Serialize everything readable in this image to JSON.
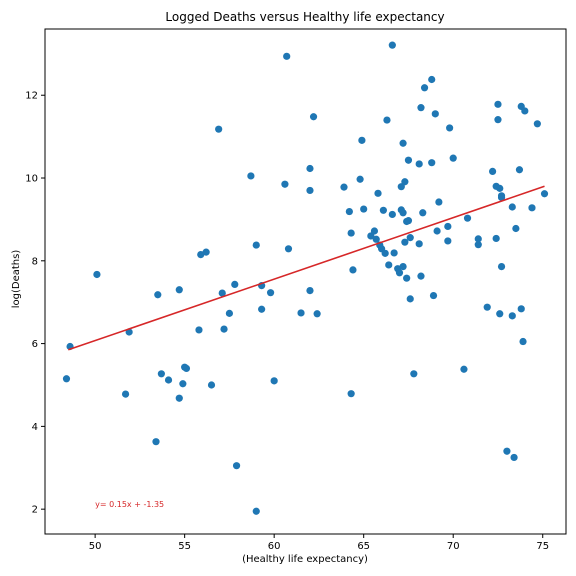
{
  "chart_data": {
    "type": "scatter",
    "title": "Logged Deaths versus Healthy life expectancy",
    "xlabel": "(Healthy life expectancy)",
    "ylabel": "log(Deaths)",
    "xlim": [
      47.2,
      76.3
    ],
    "ylim": [
      1.4,
      13.6
    ],
    "xticks": [
      50,
      55,
      60,
      65,
      70,
      75
    ],
    "yticks": [
      2,
      4,
      6,
      8,
      10,
      12
    ],
    "grid": false,
    "point_color": "#1f77b4",
    "fit_line": {
      "slope": 0.15,
      "intercept": -1.35,
      "x_range": [
        48.5,
        75.1
      ],
      "y_range": [
        5.85,
        9.8
      ],
      "color": "#d62728"
    },
    "annotation": {
      "text": "y= 0.15x + -1.35",
      "x": 50,
      "y": 2.05,
      "color": "#d62728"
    },
    "points": [
      [
        48.4,
        5.15
      ],
      [
        48.6,
        5.93
      ],
      [
        50.1,
        7.67
      ],
      [
        51.7,
        4.78
      ],
      [
        51.9,
        6.28
      ],
      [
        53.4,
        3.63
      ],
      [
        53.5,
        7.18
      ],
      [
        53.7,
        5.27
      ],
      [
        54.1,
        5.12
      ],
      [
        54.7,
        7.3
      ],
      [
        54.7,
        4.68
      ],
      [
        54.9,
        5.03
      ],
      [
        55.0,
        5.43
      ],
      [
        55.1,
        5.4
      ],
      [
        55.8,
        6.33
      ],
      [
        55.9,
        8.15
      ],
      [
        56.2,
        8.21
      ],
      [
        56.5,
        5.0
      ],
      [
        56.9,
        11.18
      ],
      [
        57.1,
        7.22
      ],
      [
        57.2,
        6.35
      ],
      [
        57.5,
        6.73
      ],
      [
        57.8,
        7.43
      ],
      [
        57.9,
        3.05
      ],
      [
        58.7,
        10.05
      ],
      [
        59.0,
        8.38
      ],
      [
        59.0,
        1.95
      ],
      [
        59.3,
        6.83
      ],
      [
        59.3,
        7.4
      ],
      [
        59.8,
        7.23
      ],
      [
        60.0,
        5.1
      ],
      [
        60.6,
        9.85
      ],
      [
        60.7,
        12.94
      ],
      [
        60.8,
        8.29
      ],
      [
        61.5,
        6.74
      ],
      [
        62.0,
        10.23
      ],
      [
        62.0,
        9.7
      ],
      [
        62.0,
        7.28
      ],
      [
        62.2,
        11.48
      ],
      [
        62.4,
        6.72
      ],
      [
        63.9,
        9.78
      ],
      [
        64.2,
        9.19
      ],
      [
        64.3,
        4.79
      ],
      [
        64.3,
        8.67
      ],
      [
        64.4,
        7.78
      ],
      [
        64.8,
        9.97
      ],
      [
        64.9,
        10.91
      ],
      [
        65.0,
        9.25
      ],
      [
        65.4,
        8.6
      ],
      [
        65.6,
        8.72
      ],
      [
        65.7,
        8.52
      ],
      [
        65.8,
        9.63
      ],
      [
        65.9,
        8.38
      ],
      [
        66.0,
        8.29
      ],
      [
        66.1,
        9.22
      ],
      [
        66.2,
        8.18
      ],
      [
        66.3,
        11.4
      ],
      [
        66.4,
        7.9
      ],
      [
        66.6,
        13.21
      ],
      [
        66.6,
        9.12
      ],
      [
        66.7,
        8.19
      ],
      [
        66.9,
        7.81
      ],
      [
        67.0,
        7.71
      ],
      [
        67.1,
        9.23
      ],
      [
        67.1,
        9.79
      ],
      [
        67.2,
        9.16
      ],
      [
        67.2,
        10.84
      ],
      [
        67.2,
        7.86
      ],
      [
        67.3,
        9.91
      ],
      [
        67.3,
        8.45
      ],
      [
        67.4,
        8.95
      ],
      [
        67.4,
        7.58
      ],
      [
        67.5,
        10.43
      ],
      [
        67.5,
        8.97
      ],
      [
        67.6,
        8.56
      ],
      [
        67.6,
        7.08
      ],
      [
        67.8,
        5.27
      ],
      [
        68.1,
        8.41
      ],
      [
        68.1,
        10.34
      ],
      [
        68.2,
        7.63
      ],
      [
        68.2,
        11.7
      ],
      [
        68.3,
        9.16
      ],
      [
        68.4,
        12.18
      ],
      [
        68.8,
        12.38
      ],
      [
        68.8,
        10.37
      ],
      [
        68.9,
        7.16
      ],
      [
        69.0,
        11.55
      ],
      [
        69.1,
        8.72
      ],
      [
        69.2,
        9.42
      ],
      [
        69.7,
        8.48
      ],
      [
        69.7,
        8.83
      ],
      [
        69.8,
        11.21
      ],
      [
        70.0,
        10.48
      ],
      [
        70.6,
        5.38
      ],
      [
        70.8,
        9.03
      ],
      [
        71.4,
        8.53
      ],
      [
        71.4,
        8.39
      ],
      [
        71.9,
        6.88
      ],
      [
        72.2,
        10.16
      ],
      [
        72.4,
        9.8
      ],
      [
        72.4,
        8.54
      ],
      [
        72.5,
        11.78
      ],
      [
        72.5,
        11.41
      ],
      [
        72.6,
        9.75
      ],
      [
        72.6,
        6.72
      ],
      [
        72.7,
        9.53
      ],
      [
        72.7,
        9.57
      ],
      [
        72.7,
        7.86
      ],
      [
        73.0,
        3.4
      ],
      [
        73.3,
        6.67
      ],
      [
        73.3,
        9.3
      ],
      [
        73.4,
        3.25
      ],
      [
        73.5,
        8.78
      ],
      [
        73.7,
        10.2
      ],
      [
        73.8,
        11.73
      ],
      [
        73.8,
        6.84
      ],
      [
        73.9,
        6.05
      ],
      [
        74.0,
        11.62
      ],
      [
        74.4,
        9.28
      ],
      [
        74.7,
        11.31
      ],
      [
        75.1,
        9.62
      ]
    ]
  }
}
